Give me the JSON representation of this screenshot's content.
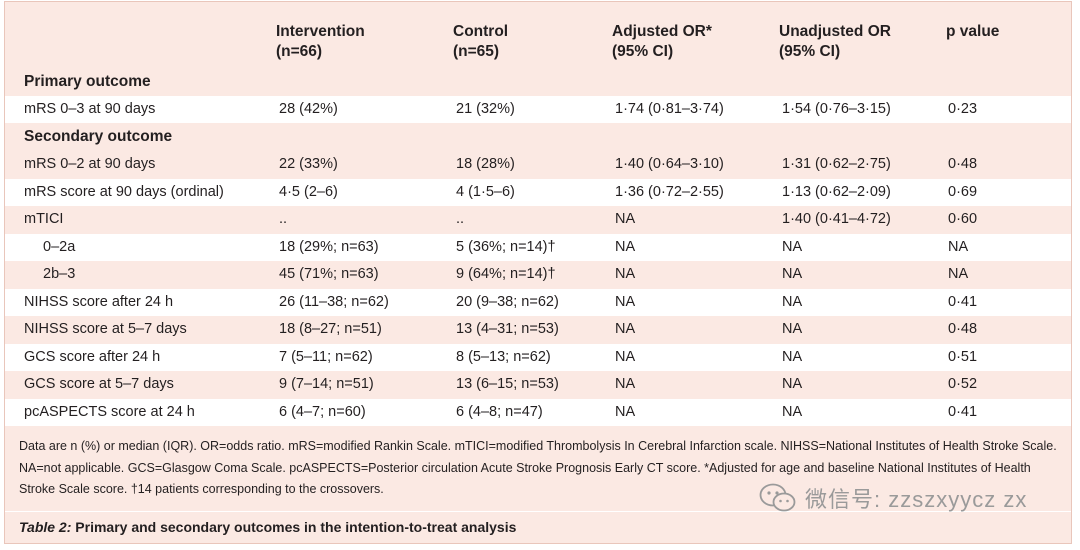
{
  "header": {
    "col_intervention": [
      "Intervention",
      "(n=66)"
    ],
    "col_control": [
      "Control",
      "(n=65)"
    ],
    "col_adjusted": [
      "Adjusted OR*",
      "(95% CI)"
    ],
    "col_unadjusted": [
      "Unadjusted OR",
      "(95% CI)"
    ],
    "col_p": [
      "p value"
    ]
  },
  "sections": {
    "primary": "Primary outcome",
    "secondary": "Secondary outcome"
  },
  "primary_rows": [
    {
      "label": "mRS 0–3 at 90 days",
      "intervention": "28 (42%)",
      "control": "21 (32%)",
      "adjusted": "1·74 (0·81–3·74)",
      "unadjusted": "1·54 (0·76–3·15)",
      "p": "0·23"
    }
  ],
  "secondary_rows": [
    {
      "label": "mRS 0–2 at 90 days",
      "intervention": "22 (33%)",
      "control": "18 (28%)",
      "adjusted": "1·40 (0·64–3·10)",
      "unadjusted": "1·31 (0·62–2·75)",
      "p": "0·48"
    },
    {
      "label": "mRS score at 90 days (ordinal)",
      "intervention": "4·5 (2–6)",
      "control": "4 (1·5–6)",
      "adjusted": "1·36 (0·72–2·55)",
      "unadjusted": "1·13 (0·62–2·09)",
      "p": "0·69"
    },
    {
      "label": "mTICI",
      "intervention": "..",
      "control": "..",
      "adjusted": "NA",
      "unadjusted": "1·40 (0·41–4·72)",
      "p": "0·60"
    },
    {
      "label": "0–2a",
      "intervention": "18 (29%; n=63)",
      "control": "5 (36%; n=14)†",
      "adjusted": "NA",
      "unadjusted": "NA",
      "p": "NA"
    },
    {
      "label": "2b–3",
      "intervention": "45 (71%; n=63)",
      "control": "9 (64%; n=14)†",
      "adjusted": "NA",
      "unadjusted": "NA",
      "p": "NA"
    },
    {
      "label": "NIHSS score after 24 h",
      "intervention": "26 (11–38; n=62)",
      "control": "20 (9–38; n=62)",
      "adjusted": "NA",
      "unadjusted": "NA",
      "p": "0·41"
    },
    {
      "label": "NIHSS score at 5–7 days",
      "intervention": "18 (8–27; n=51)",
      "control": "13 (4–31; n=53)",
      "adjusted": "NA",
      "unadjusted": "NA",
      "p": "0·48"
    },
    {
      "label": "GCS score after 24 h",
      "intervention": "7 (5–11; n=62)",
      "control": "8 (5–13; n=62)",
      "adjusted": "NA",
      "unadjusted": "NA",
      "p": "0·51"
    },
    {
      "label": "GCS score at 5–7 days",
      "intervention": "9 (7–14; n=51)",
      "control": "13 (6–15; n=53)",
      "adjusted": "NA",
      "unadjusted": "NA",
      "p": "0·52"
    },
    {
      "label": "pcASPECTS score at 24 h",
      "intervention": "6 (4–7; n=60)",
      "control": "6 (4–8; n=47)",
      "adjusted": "NA",
      "unadjusted": "NA",
      "p": "0·41"
    }
  ],
  "footnote": "Data are n (%) or median (IQR). OR=odds ratio. mRS=modified Rankin Scale. mTICI=modified Thrombolysis In Cerebral Infarction scale. NIHSS=National Institutes of Health Stroke Scale. NA=not applicable. GCS=Glasgow Coma Scale. pcASPECTS=Posterior circulation Acute Stroke Prognosis Early CT score. *Adjusted for age and baseline National Institutes of Health Stroke Scale score. †14 patients corresponding to the crossovers.",
  "caption": {
    "number": "Table 2:",
    "text": " Primary and secondary outcomes in the intention-to-treat analysis"
  },
  "watermark": {
    "icon": "wechat-icon",
    "text": "微信号: zzszxyycz zx"
  },
  "colors": {
    "background": "#fbe9e3",
    "stripe": "#ffffff",
    "text": "#231f20"
  }
}
